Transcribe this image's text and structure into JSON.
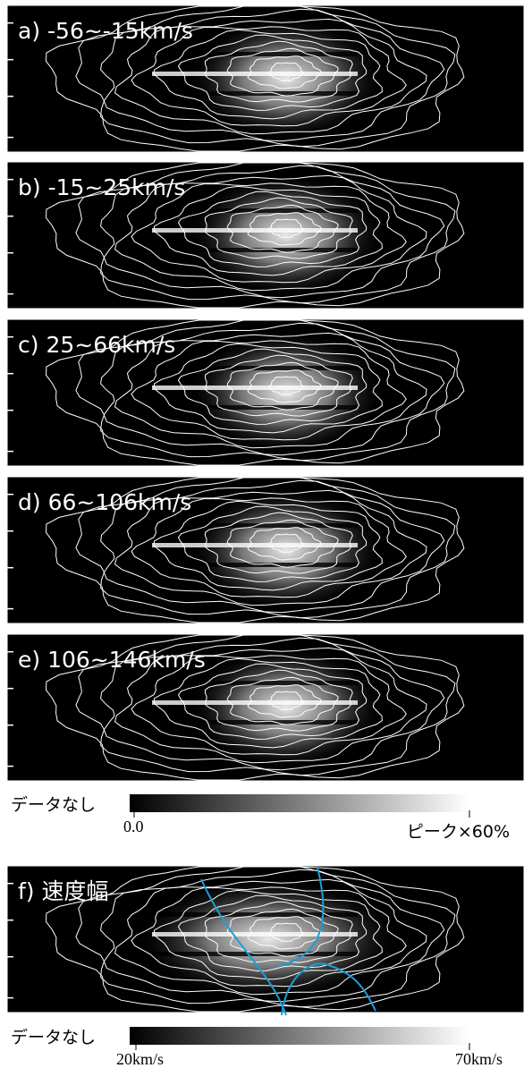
{
  "panels": [
    {
      "label": "a) -56~-15km/s"
    },
    {
      "label": "b) -15~25km/s"
    },
    {
      "label": "c) 25~66km/s"
    },
    {
      "label": "d) 66~106km/s"
    },
    {
      "label": "e) 106~146km/s"
    }
  ],
  "colorbar1": {
    "no_data": "データなし",
    "min": "0.0",
    "max": "ピーク×60%"
  },
  "panel_f": {
    "label": "f) 速度幅"
  },
  "colorbar2": {
    "no_data": "データなし",
    "min": "20km/s",
    "max": "70km/s"
  }
}
